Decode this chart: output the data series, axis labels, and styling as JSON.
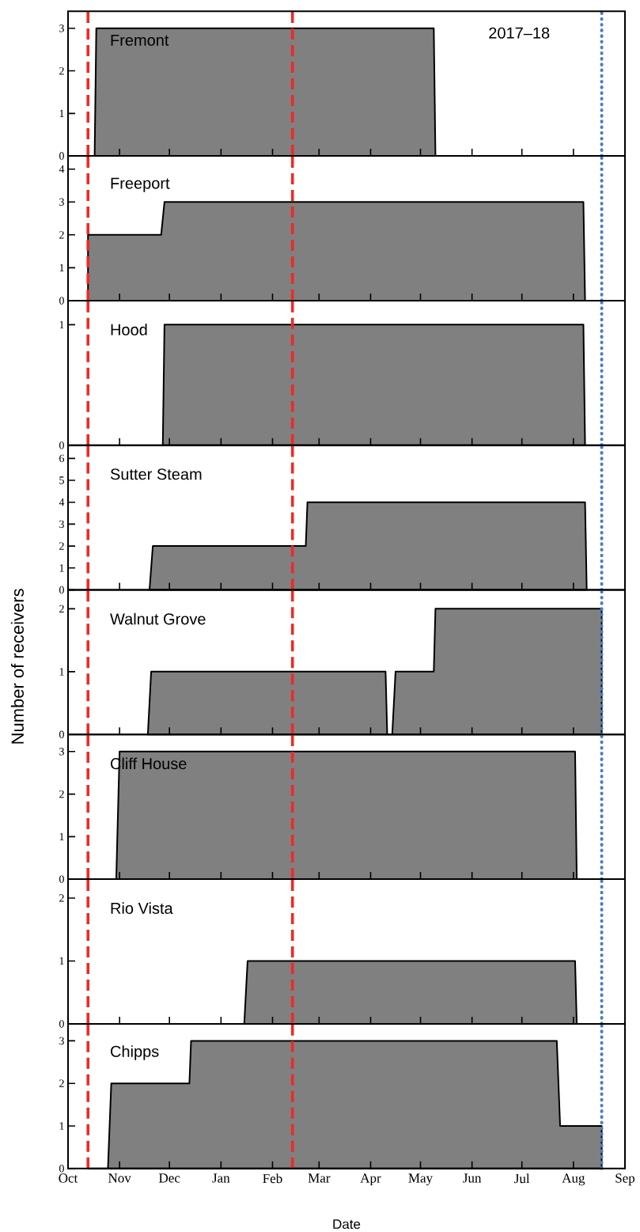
{
  "chart_data": [
    {
      "type": "area",
      "title": "Fremont",
      "annotations": [
        "2017–18"
      ],
      "color": "#808080",
      "x": [
        "2017-10-01",
        "2017-10-17",
        "2017-10-18",
        "2018-05-09",
        "2018-05-10"
      ],
      "values": [
        0,
        0,
        3,
        3,
        0
      ],
      "xlim": [
        "2017-10-01",
        "2018-09-01"
      ],
      "xticks": [
        {
          "value": "2017-10-01",
          "label": null
        },
        {
          "value": "2017-11-01",
          "label": null
        },
        {
          "value": "2017-12-01",
          "label": null
        },
        {
          "value": "2018-01-01",
          "label": null
        },
        {
          "value": "2018-02-01",
          "label": null
        },
        {
          "value": "2018-03-01",
          "label": null
        },
        {
          "value": "2018-04-01",
          "label": null
        },
        {
          "value": "2018-05-01",
          "label": null
        },
        {
          "value": "2018-06-01",
          "label": null
        },
        {
          "value": "2018-07-01",
          "label": null
        },
        {
          "value": "2018-08-01",
          "label": null
        },
        {
          "value": "2018-09-01",
          "label": null
        }
      ],
      "ylim": [
        0,
        3.4
      ],
      "yticks": [
        0,
        1,
        2,
        3
      ],
      "tick_labels": "y",
      "ref_lines": [
        {
          "axis": "x",
          "value": "2017-10-13",
          "color": "#ee2a24",
          "line_style": "dashed"
        },
        {
          "axis": "x",
          "value": "2018-02-13",
          "color": "#ee2a24",
          "line_style": "dashed"
        },
        {
          "axis": "x",
          "value": "2018-08-18",
          "color": "#4a7cc4",
          "line_style": "dotted"
        }
      ]
    },
    {
      "type": "area",
      "title": "Freeport",
      "color": "#808080",
      "x": [
        "2017-10-13",
        "2017-11-26",
        "2017-11-28",
        "2018-08-07",
        "2018-08-08"
      ],
      "values": [
        2,
        2,
        3,
        3,
        0
      ],
      "xlim": [
        "2017-10-01",
        "2018-09-01"
      ],
      "xticks": [
        {
          "value": "2017-10-01",
          "label": null
        },
        {
          "value": "2017-11-01",
          "label": null
        },
        {
          "value": "2017-12-01",
          "label": null
        },
        {
          "value": "2018-01-01",
          "label": null
        },
        {
          "value": "2018-02-01",
          "label": null
        },
        {
          "value": "2018-03-01",
          "label": null
        },
        {
          "value": "2018-04-01",
          "label": null
        },
        {
          "value": "2018-05-01",
          "label": null
        },
        {
          "value": "2018-06-01",
          "label": null
        },
        {
          "value": "2018-07-01",
          "label": null
        },
        {
          "value": "2018-08-01",
          "label": null
        },
        {
          "value": "2018-09-01",
          "label": null
        }
      ],
      "ylim": [
        0,
        4.4
      ],
      "yticks": [
        0,
        1,
        2,
        3,
        4
      ],
      "tick_labels": "y",
      "ref_lines": [
        {
          "axis": "x",
          "value": "2017-10-13",
          "color": "#ee2a24",
          "line_style": "dashed"
        },
        {
          "axis": "x",
          "value": "2018-02-13",
          "color": "#ee2a24",
          "line_style": "dashed"
        },
        {
          "axis": "x",
          "value": "2018-08-18",
          "color": "#4a7cc4",
          "line_style": "dotted"
        }
      ]
    },
    {
      "type": "area",
      "title": "Hood",
      "color": "#808080",
      "x": [
        "2017-11-27",
        "2017-11-28",
        "2018-08-07",
        "2018-08-08"
      ],
      "values": [
        0,
        1,
        1,
        0
      ],
      "xlim": [
        "2017-10-01",
        "2018-09-01"
      ],
      "xticks": [
        {
          "value": "2017-10-01",
          "label": null
        },
        {
          "value": "2017-11-01",
          "label": null
        },
        {
          "value": "2017-12-01",
          "label": null
        },
        {
          "value": "2018-01-01",
          "label": null
        },
        {
          "value": "2018-02-01",
          "label": null
        },
        {
          "value": "2018-03-01",
          "label": null
        },
        {
          "value": "2018-04-01",
          "label": null
        },
        {
          "value": "2018-05-01",
          "label": null
        },
        {
          "value": "2018-06-01",
          "label": null
        },
        {
          "value": "2018-07-01",
          "label": null
        },
        {
          "value": "2018-08-01",
          "label": null
        },
        {
          "value": "2018-09-01",
          "label": null
        }
      ],
      "ylim": [
        0,
        1.2
      ],
      "yticks": [
        0,
        1
      ],
      "tick_labels": "y",
      "ref_lines": [
        {
          "axis": "x",
          "value": "2017-10-13",
          "color": "#ee2a24",
          "line_style": "dashed"
        },
        {
          "axis": "x",
          "value": "2018-02-13",
          "color": "#ee2a24",
          "line_style": "dashed"
        },
        {
          "axis": "x",
          "value": "2018-08-18",
          "color": "#4a7cc4",
          "line_style": "dotted"
        }
      ]
    },
    {
      "type": "area",
      "title": "Sutter Steam",
      "color": "#808080",
      "x": [
        "2017-11-19",
        "2017-11-21",
        "2018-02-21",
        "2018-02-22",
        "2018-08-08",
        "2018-08-09"
      ],
      "values": [
        0,
        2,
        2,
        4,
        4,
        0
      ],
      "xlim": [
        "2017-10-01",
        "2018-09-01"
      ],
      "xticks": [
        {
          "value": "2017-10-01",
          "label": null
        },
        {
          "value": "2017-11-01",
          "label": null
        },
        {
          "value": "2017-12-01",
          "label": null
        },
        {
          "value": "2018-01-01",
          "label": null
        },
        {
          "value": "2018-02-01",
          "label": null
        },
        {
          "value": "2018-03-01",
          "label": null
        },
        {
          "value": "2018-04-01",
          "label": null
        },
        {
          "value": "2018-05-01",
          "label": null
        },
        {
          "value": "2018-06-01",
          "label": null
        },
        {
          "value": "2018-07-01",
          "label": null
        },
        {
          "value": "2018-08-01",
          "label": null
        },
        {
          "value": "2018-09-01",
          "label": null
        }
      ],
      "ylim": [
        0,
        6.6
      ],
      "yticks": [
        0,
        1,
        2,
        3,
        4,
        5,
        6
      ],
      "tick_labels": "y",
      "ref_lines": [
        {
          "axis": "x",
          "value": "2017-10-13",
          "color": "#ee2a24",
          "line_style": "dashed"
        },
        {
          "axis": "x",
          "value": "2018-02-13",
          "color": "#ee2a24",
          "line_style": "dashed"
        },
        {
          "axis": "x",
          "value": "2018-08-18",
          "color": "#4a7cc4",
          "line_style": "dotted"
        }
      ]
    },
    {
      "type": "area",
      "title": "Walnut Grove",
      "ylabel": "Number of receivers",
      "color": "#808080",
      "x": [
        "2017-11-18",
        "2017-11-20",
        "2018-04-10",
        "2018-04-11",
        "2018-04-14",
        "2018-04-16",
        "2018-05-09",
        "2018-05-10",
        "2018-08-18"
      ],
      "values": [
        0,
        1,
        1,
        0,
        0,
        1,
        1,
        2,
        2
      ],
      "xlim": [
        "2017-10-01",
        "2018-09-01"
      ],
      "xticks": [
        {
          "value": "2017-10-01",
          "label": null
        },
        {
          "value": "2017-11-01",
          "label": null
        },
        {
          "value": "2017-12-01",
          "label": null
        },
        {
          "value": "2018-01-01",
          "label": null
        },
        {
          "value": "2018-02-01",
          "label": null
        },
        {
          "value": "2018-03-01",
          "label": null
        },
        {
          "value": "2018-04-01",
          "label": null
        },
        {
          "value": "2018-05-01",
          "label": null
        },
        {
          "value": "2018-06-01",
          "label": null
        },
        {
          "value": "2018-07-01",
          "label": null
        },
        {
          "value": "2018-08-01",
          "label": null
        },
        {
          "value": "2018-09-01",
          "label": null
        }
      ],
      "ylim": [
        0,
        2.3
      ],
      "yticks": [
        0,
        1,
        2
      ],
      "tick_labels": "y",
      "ref_lines": [
        {
          "axis": "x",
          "value": "2017-10-13",
          "color": "#ee2a24",
          "line_style": "dashed"
        },
        {
          "axis": "x",
          "value": "2018-02-13",
          "color": "#ee2a24",
          "line_style": "dashed"
        },
        {
          "axis": "x",
          "value": "2018-08-18",
          "color": "#4a7cc4",
          "line_style": "dotted"
        }
      ]
    },
    {
      "type": "area",
      "title": "Cliff House",
      "color": "#808080",
      "x": [
        "2017-10-30",
        "2017-11-01",
        "2018-08-02",
        "2018-08-03"
      ],
      "values": [
        0,
        3,
        3,
        0
      ],
      "xlim": [
        "2017-10-01",
        "2018-09-01"
      ],
      "xticks": [
        {
          "value": "2017-10-01",
          "label": null
        },
        {
          "value": "2017-11-01",
          "label": null
        },
        {
          "value": "2017-12-01",
          "label": null
        },
        {
          "value": "2018-01-01",
          "label": null
        },
        {
          "value": "2018-02-01",
          "label": null
        },
        {
          "value": "2018-03-01",
          "label": null
        },
        {
          "value": "2018-04-01",
          "label": null
        },
        {
          "value": "2018-05-01",
          "label": null
        },
        {
          "value": "2018-06-01",
          "label": null
        },
        {
          "value": "2018-07-01",
          "label": null
        },
        {
          "value": "2018-08-01",
          "label": null
        },
        {
          "value": "2018-09-01",
          "label": null
        }
      ],
      "ylim": [
        0,
        3.4
      ],
      "yticks": [
        0,
        1,
        2,
        3
      ],
      "tick_labels": "y",
      "ref_lines": [
        {
          "axis": "x",
          "value": "2017-10-13",
          "color": "#ee2a24",
          "line_style": "dashed"
        },
        {
          "axis": "x",
          "value": "2018-02-13",
          "color": "#ee2a24",
          "line_style": "dashed"
        },
        {
          "axis": "x",
          "value": "2018-08-18",
          "color": "#4a7cc4",
          "line_style": "dotted"
        }
      ]
    },
    {
      "type": "area",
      "title": "Rio Vista",
      "color": "#808080",
      "x": [
        "2018-01-15",
        "2018-01-17",
        "2018-08-02",
        "2018-08-03"
      ],
      "values": [
        0,
        1,
        1,
        0
      ],
      "xlim": [
        "2017-10-01",
        "2018-09-01"
      ],
      "xticks": [
        {
          "value": "2017-10-01",
          "label": null
        },
        {
          "value": "2017-11-01",
          "label": null
        },
        {
          "value": "2017-12-01",
          "label": null
        },
        {
          "value": "2018-01-01",
          "label": null
        },
        {
          "value": "2018-02-01",
          "label": null
        },
        {
          "value": "2018-03-01",
          "label": null
        },
        {
          "value": "2018-04-01",
          "label": null
        },
        {
          "value": "2018-05-01",
          "label": null
        },
        {
          "value": "2018-06-01",
          "label": null
        },
        {
          "value": "2018-07-01",
          "label": null
        },
        {
          "value": "2018-08-01",
          "label": null
        },
        {
          "value": "2018-09-01",
          "label": null
        }
      ],
      "ylim": [
        0,
        2.3
      ],
      "yticks": [
        0,
        1,
        2
      ],
      "tick_labels": "y",
      "ref_lines": [
        {
          "axis": "x",
          "value": "2017-10-13",
          "color": "#ee2a24",
          "line_style": "dashed"
        },
        {
          "axis": "x",
          "value": "2018-02-13",
          "color": "#ee2a24",
          "line_style": "dashed"
        },
        {
          "axis": "x",
          "value": "2018-08-18",
          "color": "#4a7cc4",
          "line_style": "dotted"
        }
      ]
    },
    {
      "type": "area",
      "title": "Chipps",
      "xlabel": "Date",
      "color": "#808080",
      "x": [
        "2017-10-13",
        "2017-10-25",
        "2017-10-27",
        "2017-12-13",
        "2017-12-14",
        "2018-07-22",
        "2018-07-24",
        "2018-08-18"
      ],
      "values": [
        0,
        0,
        2,
        2,
        3,
        3,
        1,
        1
      ],
      "xlim": [
        "2017-10-01",
        "2018-09-01"
      ],
      "xticks": [
        {
          "value": "2017-10-01",
          "label": "Oct"
        },
        {
          "value": "2017-11-01",
          "label": "Nov"
        },
        {
          "value": "2017-12-01",
          "label": "Dec"
        },
        {
          "value": "2018-01-01",
          "label": "Jan"
        },
        {
          "value": "2018-02-01",
          "label": "Feb"
        },
        {
          "value": "2018-03-01",
          "label": "Mar"
        },
        {
          "value": "2018-04-01",
          "label": "Apr"
        },
        {
          "value": "2018-05-01",
          "label": "May"
        },
        {
          "value": "2018-06-01",
          "label": "Jun"
        },
        {
          "value": "2018-07-01",
          "label": "Jul"
        },
        {
          "value": "2018-08-01",
          "label": "Aug"
        },
        {
          "value": "2018-09-01",
          "label": "Sep"
        }
      ],
      "ylim": [
        0,
        3.4
      ],
      "yticks": [
        0,
        1,
        2,
        3
      ],
      "ref_lines": [
        {
          "axis": "x",
          "value": "2017-10-13",
          "color": "#ee2a24",
          "line_style": "dashed"
        },
        {
          "axis": "x",
          "value": "2018-02-13",
          "color": "#ee2a24",
          "line_style": "dashed"
        },
        {
          "axis": "x",
          "value": "2018-08-18",
          "color": "#4a7cc4",
          "line_style": "dotted"
        }
      ]
    }
  ]
}
